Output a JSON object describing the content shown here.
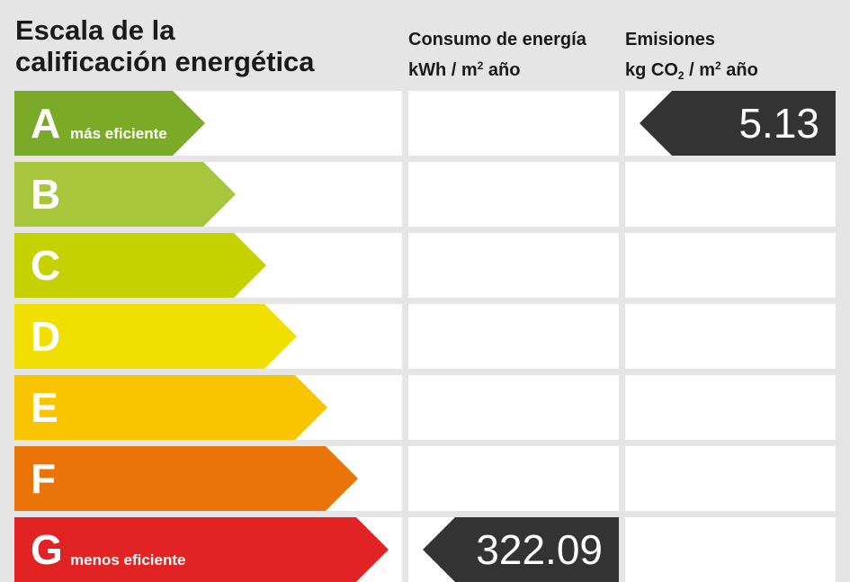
{
  "title": {
    "line1": "Escala de la",
    "line2": "calificación energética"
  },
  "columns": {
    "consumo": {
      "label": "Consumo de energía",
      "unit_prefix": "kWh / m",
      "unit_sup": "2",
      "unit_suffix": " año"
    },
    "emisiones": {
      "label": "Emisiones",
      "unit_prefix": "kg CO",
      "unit_sub": "2",
      "unit_mid": " / m",
      "unit_sup": "2",
      "unit_suffix": " año"
    }
  },
  "chart_data": {
    "type": "table",
    "ratings": [
      {
        "letter": "A",
        "color": "#7ba928",
        "label": "más eficiente"
      },
      {
        "letter": "B",
        "color": "#a8c63c",
        "label": ""
      },
      {
        "letter": "C",
        "color": "#c6d100",
        "label": ""
      },
      {
        "letter": "D",
        "color": "#f0df00",
        "label": ""
      },
      {
        "letter": "E",
        "color": "#f9c400",
        "label": ""
      },
      {
        "letter": "F",
        "color": "#ea7408",
        "label": ""
      },
      {
        "letter": "G",
        "color": "#e22323",
        "label": "menos eficiente"
      }
    ],
    "consumo": {
      "rating": "G",
      "value": "322.09"
    },
    "emisiones": {
      "rating": "A",
      "value": "5.13"
    },
    "indicator_color": "#333333"
  }
}
